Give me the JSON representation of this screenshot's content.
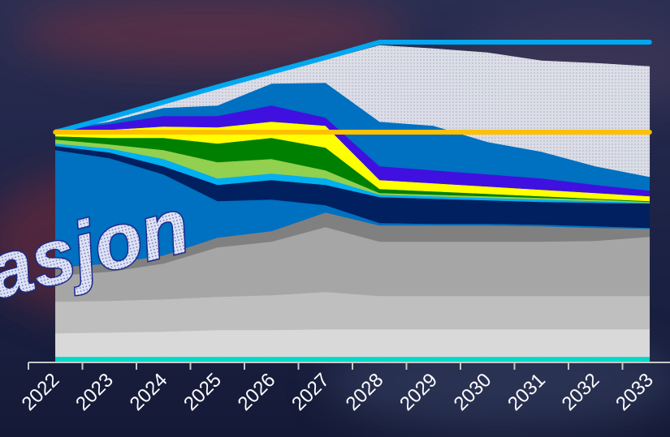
{
  "chart_data": {
    "type": "stacked_area",
    "annotation": "asjon",
    "categories": [
      "2022",
      "2023",
      "2024",
      "2025",
      "2026",
      "2027",
      "2028",
      "2029",
      "2030",
      "2031",
      "2032",
      "2033"
    ],
    "ylim": [
      0,
      400
    ],
    "series": [
      {
        "color": "#00d8c8",
        "values": [
          7,
          7,
          7,
          7,
          7,
          7,
          7,
          7,
          7,
          7,
          7,
          7
        ]
      },
      {
        "color": "#d9d9d9",
        "values": [
          29,
          30,
          31,
          33,
          33,
          34,
          34,
          34,
          34,
          34,
          34,
          34
        ]
      },
      {
        "color": "#bfbfbf",
        "values": [
          39,
          39,
          40,
          41,
          43,
          46,
          41,
          41,
          41,
          41,
          41,
          41
        ]
      },
      {
        "color": "#a6a6a6",
        "values": [
          32,
          36,
          44,
          61,
          66,
          80,
          67,
          67,
          67,
          67,
          68,
          73
        ]
      },
      {
        "color": "#808080",
        "values": [
          10,
          10,
          10,
          12,
          13,
          18,
          20,
          20,
          20,
          19,
          16,
          10
        ]
      },
      {
        "color": "#0070c0",
        "values": [
          145,
          130,
          100,
          45,
          39,
          9,
          3,
          2,
          2,
          2,
          2,
          1
        ]
      },
      {
        "color": "#002060",
        "values": [
          5,
          7,
          10,
          20,
          24,
          25,
          32,
          31,
          29,
          28,
          29,
          30
        ]
      },
      {
        "color": "#00b0f0",
        "values": [
          3,
          5,
          9,
          8,
          8,
          8,
          3,
          3,
          3,
          3,
          2,
          1
        ]
      },
      {
        "color": "#92d050",
        "values": [
          5,
          5,
          11,
          20,
          18,
          10,
          2,
          2,
          2,
          2,
          2,
          1
        ]
      },
      {
        "color": "#008000",
        "values": [
          4,
          8,
          15,
          23,
          26,
          28,
          5,
          4,
          3,
          2,
          1,
          1
        ]
      },
      {
        "color": "#ffff00",
        "values": [
          5,
          10,
          14,
          20,
          20,
          27,
          11,
          10,
          9,
          8,
          7,
          6
        ]
      },
      {
        "color": "#4010e0",
        "values": [
          3,
          7,
          13,
          14,
          20,
          10,
          17,
          16,
          15,
          14,
          10,
          7
        ]
      },
      {
        "color": "#0070c0",
        "values": [
          0,
          3,
          10,
          13,
          27,
          43,
          55,
          55,
          40,
          33,
          23,
          17
        ]
      },
      {
        "color": "#eeeeee",
        "values": [
          0,
          5,
          6,
          21,
          12,
          28,
          94,
          95,
          110,
          112,
          127,
          136
        ]
      }
    ],
    "lines": [
      {
        "color": "#00a8f0",
        "values": [
          284,
          302,
          321,
          340,
          358,
          376,
          395,
          395,
          395,
          395,
          395,
          395
        ]
      },
      {
        "color": "#ffc000",
        "values": [
          284,
          284,
          284,
          284,
          284,
          284,
          284,
          284,
          284,
          284,
          284,
          284
        ]
      }
    ]
  }
}
